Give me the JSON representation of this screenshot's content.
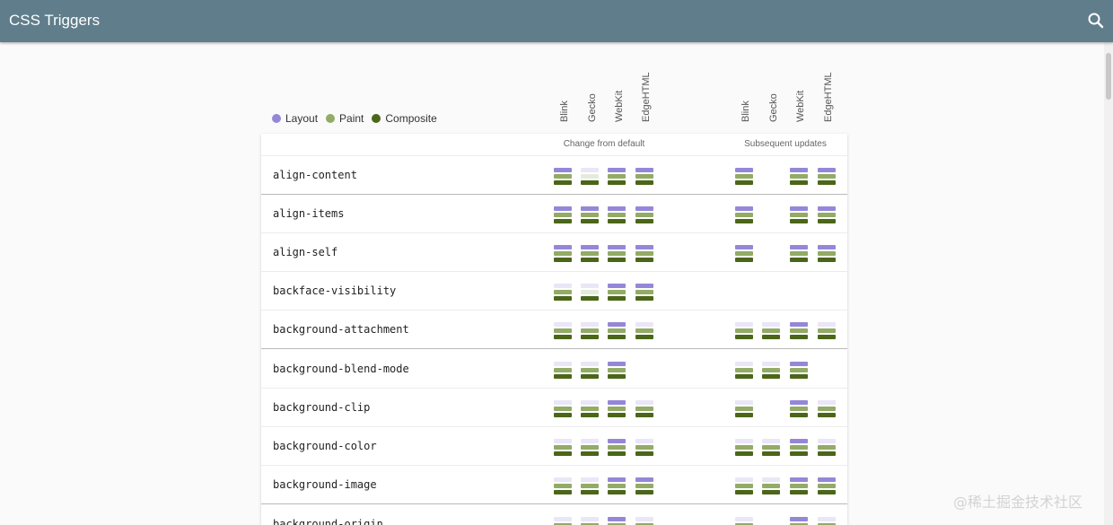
{
  "app": {
    "title": "CSS Triggers"
  },
  "icons": {
    "search": "search-icon"
  },
  "colors": {
    "appbar": "#607d8b",
    "layout": "#9587d8",
    "layout_off": "#e9e6f7",
    "paint": "#92ab66",
    "paint_off": "#e5ebdc",
    "composite": "#4b6619",
    "composite_off": "#dfe6d6"
  },
  "legend": [
    {
      "label": "Layout",
      "color": "#9587d8"
    },
    {
      "label": "Paint",
      "color": "#92ab66"
    },
    {
      "label": "Composite",
      "color": "#4b6619"
    }
  ],
  "groups": [
    {
      "label": "Change from default",
      "browsers": [
        "Blink",
        "Gecko",
        "WebKit",
        "EdgeHTML"
      ]
    },
    {
      "label": "Subsequent updates",
      "browsers": [
        "Blink",
        "Gecko",
        "WebKit",
        "EdgeHTML"
      ]
    }
  ],
  "rows": [
    {
      "property": "align-content",
      "change": [
        [
          1,
          1,
          1
        ],
        [
          0,
          0,
          1
        ],
        [
          1,
          1,
          1
        ],
        [
          1,
          1,
          1
        ]
      ],
      "subsequent": [
        [
          1,
          1,
          1
        ],
        null,
        [
          1,
          1,
          1
        ],
        [
          1,
          1,
          1
        ]
      ]
    },
    {
      "property": "align-items",
      "change": [
        [
          1,
          1,
          1
        ],
        [
          1,
          1,
          1
        ],
        [
          1,
          1,
          1
        ],
        [
          1,
          1,
          1
        ]
      ],
      "subsequent": [
        [
          1,
          1,
          1
        ],
        null,
        [
          1,
          1,
          1
        ],
        [
          1,
          1,
          1
        ]
      ]
    },
    {
      "property": "align-self",
      "change": [
        [
          1,
          1,
          1
        ],
        [
          1,
          1,
          1
        ],
        [
          1,
          1,
          1
        ],
        [
          1,
          1,
          1
        ]
      ],
      "subsequent": [
        [
          1,
          1,
          1
        ],
        null,
        [
          1,
          1,
          1
        ],
        [
          1,
          1,
          1
        ]
      ]
    },
    {
      "property": "backface-visibility",
      "change": [
        [
          0,
          1,
          1
        ],
        [
          0,
          0,
          1
        ],
        [
          1,
          1,
          1
        ],
        [
          1,
          1,
          1
        ]
      ],
      "subsequent": [
        null,
        null,
        null,
        null
      ]
    },
    {
      "property": "background-attachment",
      "change": [
        [
          0,
          1,
          1
        ],
        [
          0,
          1,
          1
        ],
        [
          1,
          1,
          1
        ],
        [
          0,
          1,
          1
        ]
      ],
      "subsequent": [
        [
          0,
          1,
          1
        ],
        [
          0,
          1,
          1
        ],
        [
          1,
          1,
          1
        ],
        [
          0,
          1,
          1
        ]
      ]
    },
    {
      "property": "background-blend-mode",
      "change": [
        [
          0,
          1,
          1
        ],
        [
          0,
          1,
          1
        ],
        [
          1,
          1,
          1
        ],
        null
      ],
      "subsequent": [
        [
          0,
          1,
          1
        ],
        [
          0,
          1,
          1
        ],
        [
          1,
          1,
          1
        ],
        null
      ]
    },
    {
      "property": "background-clip",
      "change": [
        [
          0,
          1,
          1
        ],
        [
          0,
          1,
          1
        ],
        [
          1,
          1,
          1
        ],
        [
          0,
          1,
          1
        ]
      ],
      "subsequent": [
        [
          0,
          1,
          1
        ],
        null,
        [
          1,
          1,
          1
        ],
        [
          0,
          1,
          1
        ]
      ]
    },
    {
      "property": "background-color",
      "change": [
        [
          0,
          1,
          1
        ],
        [
          0,
          1,
          1
        ],
        [
          1,
          1,
          1
        ],
        [
          0,
          1,
          1
        ]
      ],
      "subsequent": [
        [
          0,
          1,
          1
        ],
        [
          0,
          1,
          1
        ],
        [
          1,
          1,
          1
        ],
        [
          0,
          1,
          1
        ]
      ]
    },
    {
      "property": "background-image",
      "change": [
        [
          0,
          1,
          1
        ],
        [
          0,
          1,
          1
        ],
        [
          1,
          1,
          1
        ],
        [
          1,
          1,
          1
        ]
      ],
      "subsequent": [
        [
          0,
          1,
          1
        ],
        [
          0,
          1,
          1
        ],
        [
          1,
          1,
          1
        ],
        [
          1,
          1,
          1
        ]
      ]
    },
    {
      "property": "background-origin",
      "change": [
        [
          0,
          1,
          1
        ],
        [
          0,
          1,
          1
        ],
        [
          1,
          1,
          1
        ],
        [
          0,
          1,
          1
        ]
      ],
      "subsequent": [
        [
          0,
          1,
          1
        ],
        null,
        [
          1,
          1,
          1
        ],
        [
          0,
          1,
          1
        ]
      ]
    }
  ],
  "watermark": "@稀土掘金技术社区"
}
